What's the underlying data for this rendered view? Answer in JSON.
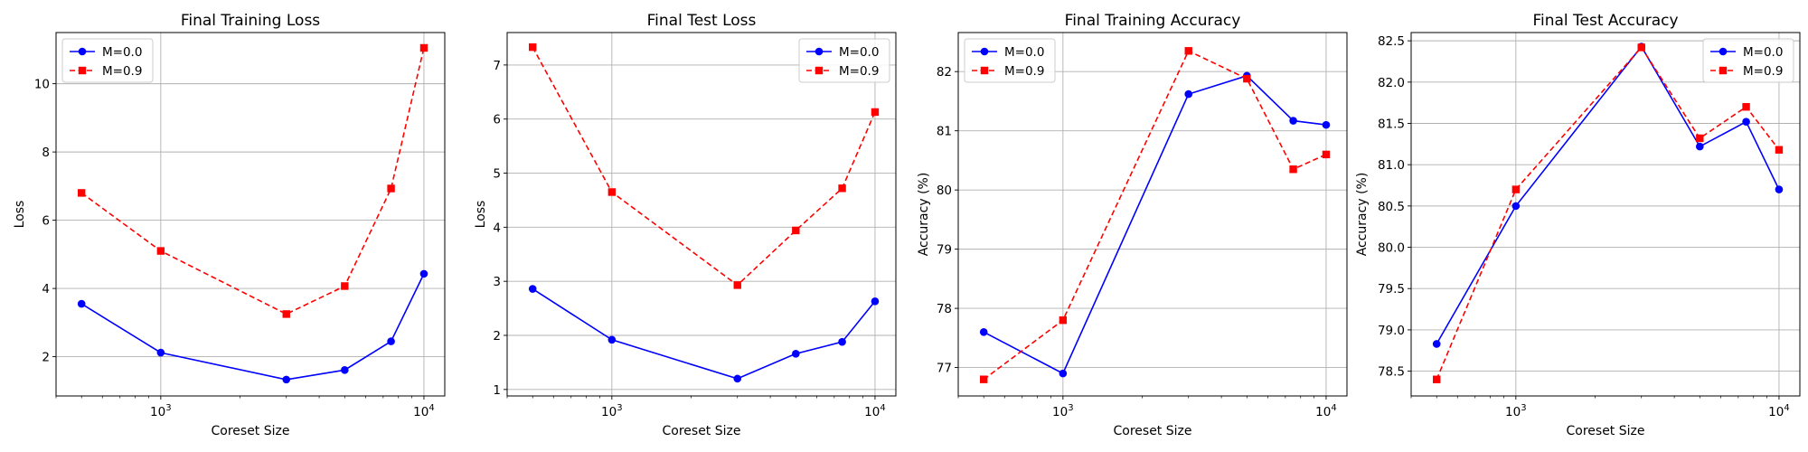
{
  "chart_data": [
    {
      "type": "line",
      "title": "Final Training Loss",
      "xlabel": "Coreset Size",
      "ylabel": "Loss",
      "xscale": "log",
      "xlim": [
        400,
        12000
      ],
      "ylim": [
        0.85,
        11.5
      ],
      "yticks": [
        2,
        4,
        6,
        8,
        10
      ],
      "xticks": [
        {
          "value": 1000,
          "base": "10",
          "exp": "3"
        },
        {
          "value": 10000,
          "base": "10",
          "exp": "4"
        }
      ],
      "grid": true,
      "legend_position": "top-left",
      "x": [
        500,
        1000,
        3000,
        5000,
        7500,
        10000
      ],
      "series": [
        {
          "name": "M=0.0",
          "values": [
            3.55,
            2.12,
            1.33,
            1.61,
            2.45,
            4.43
          ],
          "color": "#0000ff",
          "marker": "circle",
          "linestyle": "solid"
        },
        {
          "name": "M=0.9",
          "values": [
            6.8,
            5.1,
            3.25,
            4.07,
            6.93,
            11.05
          ],
          "color": "#ff0000",
          "marker": "square",
          "linestyle": "dashed"
        }
      ]
    },
    {
      "type": "line",
      "title": "Final Test Loss",
      "xlabel": "Coreset Size",
      "ylabel": "Loss",
      "xscale": "log",
      "xlim": [
        400,
        12000
      ],
      "ylim": [
        0.88,
        7.6
      ],
      "yticks": [
        1,
        2,
        3,
        4,
        5,
        6,
        7
      ],
      "xticks": [
        {
          "value": 1000,
          "base": "10",
          "exp": "3"
        },
        {
          "value": 10000,
          "base": "10",
          "exp": "4"
        }
      ],
      "grid": true,
      "legend_position": "top-right",
      "x": [
        500,
        1000,
        3000,
        5000,
        7500,
        10000
      ],
      "series": [
        {
          "name": "M=0.0",
          "values": [
            2.86,
            1.92,
            1.2,
            1.66,
            1.88,
            2.63
          ],
          "color": "#0000ff",
          "marker": "circle",
          "linestyle": "solid"
        },
        {
          "name": "M=0.9",
          "values": [
            7.33,
            4.65,
            2.93,
            3.94,
            4.72,
            6.13
          ],
          "color": "#ff0000",
          "marker": "square",
          "linestyle": "dashed"
        }
      ]
    },
    {
      "type": "line",
      "title": "Final Training Accuracy",
      "xlabel": "Coreset Size",
      "ylabel": "Accuracy (%)",
      "xscale": "log",
      "xlim": [
        400,
        12000
      ],
      "ylim": [
        76.52,
        82.66
      ],
      "yticks": [
        77,
        78,
        79,
        80,
        81,
        82
      ],
      "xticks": [
        {
          "value": 1000,
          "base": "10",
          "exp": "3"
        },
        {
          "value": 10000,
          "base": "10",
          "exp": "4"
        }
      ],
      "grid": true,
      "legend_position": "top-left",
      "x": [
        500,
        1000,
        3000,
        5000,
        7500,
        10000
      ],
      "series": [
        {
          "name": "M=0.0",
          "values": [
            77.6,
            76.9,
            81.62,
            81.93,
            81.17,
            81.1
          ],
          "color": "#0000ff",
          "marker": "circle",
          "linestyle": "solid"
        },
        {
          "name": "M=0.9",
          "values": [
            76.8,
            77.8,
            82.35,
            81.88,
            80.35,
            80.6
          ],
          "color": "#ff0000",
          "marker": "square",
          "linestyle": "dashed"
        }
      ]
    },
    {
      "type": "line",
      "title": "Final Test Accuracy",
      "xlabel": "Coreset Size",
      "ylabel": "Accuracy (%)",
      "xscale": "log",
      "xlim": [
        400,
        12000
      ],
      "ylim": [
        78.2,
        82.6
      ],
      "yticks": [
        78.5,
        79.0,
        79.5,
        80.0,
        80.5,
        81.0,
        81.5,
        82.0,
        82.5
      ],
      "ytick_labels": [
        "78.5",
        "79.0",
        "79.5",
        "80.0",
        "80.5",
        "81.0",
        "81.5",
        "82.0",
        "82.5"
      ],
      "xticks": [
        {
          "value": 1000,
          "base": "10",
          "exp": "3"
        },
        {
          "value": 10000,
          "base": "10",
          "exp": "4"
        }
      ],
      "grid": true,
      "legend_position": "top-right",
      "x": [
        500,
        1000,
        3000,
        5000,
        7500,
        10000
      ],
      "series": [
        {
          "name": "M=0.0",
          "values": [
            78.83,
            80.5,
            82.43,
            81.22,
            81.52,
            80.7
          ],
          "color": "#0000ff",
          "marker": "circle",
          "linestyle": "solid"
        },
        {
          "name": "M=0.9",
          "values": [
            78.4,
            80.7,
            82.42,
            81.32,
            81.7,
            81.18
          ],
          "color": "#ff0000",
          "marker": "square",
          "linestyle": "dashed"
        }
      ]
    }
  ]
}
